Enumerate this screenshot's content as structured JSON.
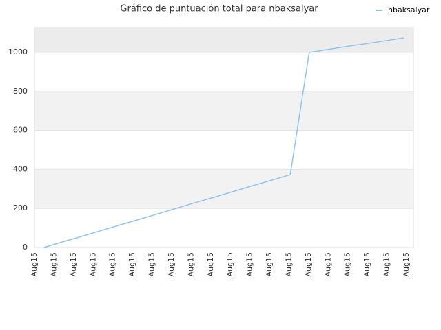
{
  "chart_data": {
    "type": "line",
    "title": "Gráfico de puntuación total para nbaksalyar",
    "categories": [
      "Aug15",
      "Aug15",
      "Aug15",
      "Aug15",
      "Aug15",
      "Aug15",
      "Aug15",
      "Aug15",
      "Aug15",
      "Aug15",
      "Aug15",
      "Aug15",
      "Aug15",
      "Aug15",
      "Aug15",
      "Aug15",
      "Aug15",
      "Aug15",
      "Aug15",
      "Aug15"
    ],
    "series": [
      {
        "name": "nbaksalyar",
        "color": "#90c4f0",
        "values": [
          0,
          29,
          57,
          86,
          115,
          143,
          172,
          201,
          230,
          258,
          287,
          316,
          344,
          373,
          1000,
          1015,
          1030,
          1044,
          1059,
          1074
        ]
      }
    ],
    "ylim": [
      0,
      1127
    ],
    "yticks": [
      0,
      200,
      400,
      600,
      800,
      1000
    ],
    "grid": true,
    "legend": "upper right"
  }
}
